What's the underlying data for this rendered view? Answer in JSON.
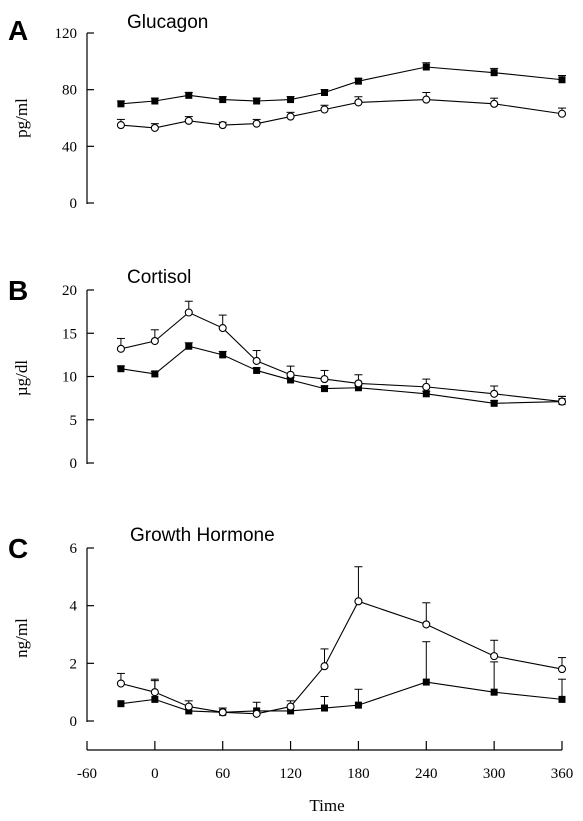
{
  "chart_data": [
    {
      "type": "line",
      "panel": "A",
      "title": "Glucagon",
      "ylabel": "pg/ml",
      "xlabel": "",
      "ylim": [
        0,
        120
      ],
      "yticks": [
        0,
        40,
        80,
        120
      ],
      "x": [
        -30,
        0,
        30,
        60,
        90,
        120,
        150,
        180,
        240,
        300,
        360
      ],
      "series": [
        {
          "marker": "filled-square",
          "values": [
            70,
            72,
            76,
            73,
            72,
            73,
            78,
            86,
            96,
            92,
            87
          ],
          "errors": [
            2,
            2,
            2,
            2,
            2,
            2,
            2,
            2,
            3,
            3,
            3
          ]
        },
        {
          "marker": "open-circle",
          "values": [
            55,
            53,
            58,
            55,
            56,
            61,
            66,
            71,
            73,
            70,
            63
          ],
          "errors": [
            4,
            3,
            3,
            2,
            3,
            3,
            3,
            4,
            5,
            4,
            4
          ]
        }
      ]
    },
    {
      "type": "line",
      "panel": "B",
      "title": "Cortisol",
      "ylabel": "µg/dl",
      "xlabel": "",
      "ylim": [
        0,
        20
      ],
      "yticks": [
        0,
        5,
        10,
        15,
        20
      ],
      "x": [
        -30,
        0,
        30,
        60,
        90,
        120,
        150,
        180,
        240,
        300,
        360
      ],
      "series": [
        {
          "marker": "filled-square",
          "values": [
            10.9,
            10.3,
            13.5,
            12.5,
            10.7,
            9.6,
            8.6,
            8.7,
            8.0,
            6.9,
            7.1
          ],
          "errors": [
            0.3,
            0.3,
            0.4,
            0.4,
            0.3,
            0.3,
            0.3,
            0.3,
            0.3,
            0.3,
            0.6
          ]
        },
        {
          "marker": "open-circle",
          "values": [
            13.2,
            14.1,
            17.4,
            15.6,
            11.8,
            10.2,
            9.7,
            9.2,
            8.8,
            8.0,
            7.1
          ],
          "errors": [
            1.2,
            1.3,
            1.3,
            1.5,
            1.2,
            1.0,
            1.0,
            1.0,
            0.9,
            0.9,
            0.6
          ]
        }
      ]
    },
    {
      "type": "line",
      "panel": "C",
      "title": "Growth Hormone",
      "ylabel": "ng/ml",
      "xlabel": "Time",
      "ylim": [
        0,
        6
      ],
      "yticks": [
        0,
        2,
        4,
        6
      ],
      "x": [
        -30,
        0,
        30,
        60,
        90,
        120,
        150,
        180,
        240,
        300,
        360
      ],
      "xticks": [
        -60,
        0,
        60,
        120,
        180,
        240,
        300,
        360
      ],
      "series": [
        {
          "marker": "filled-square",
          "values": [
            0.6,
            0.75,
            0.35,
            0.3,
            0.35,
            0.35,
            0.45,
            0.55,
            1.35,
            1.0,
            0.75
          ],
          "errors": [
            0,
            0.7,
            0,
            0,
            0.3,
            0,
            0.4,
            0.55,
            1.4,
            1.05,
            0.7
          ]
        },
        {
          "marker": "open-circle",
          "values": [
            1.3,
            1.0,
            0.5,
            0.3,
            0.25,
            0.5,
            1.9,
            4.15,
            3.35,
            2.25,
            1.8
          ],
          "errors": [
            0.35,
            0.4,
            0.2,
            0.15,
            0.1,
            0.2,
            0.6,
            1.2,
            0.75,
            0.55,
            0.4
          ]
        }
      ]
    }
  ]
}
